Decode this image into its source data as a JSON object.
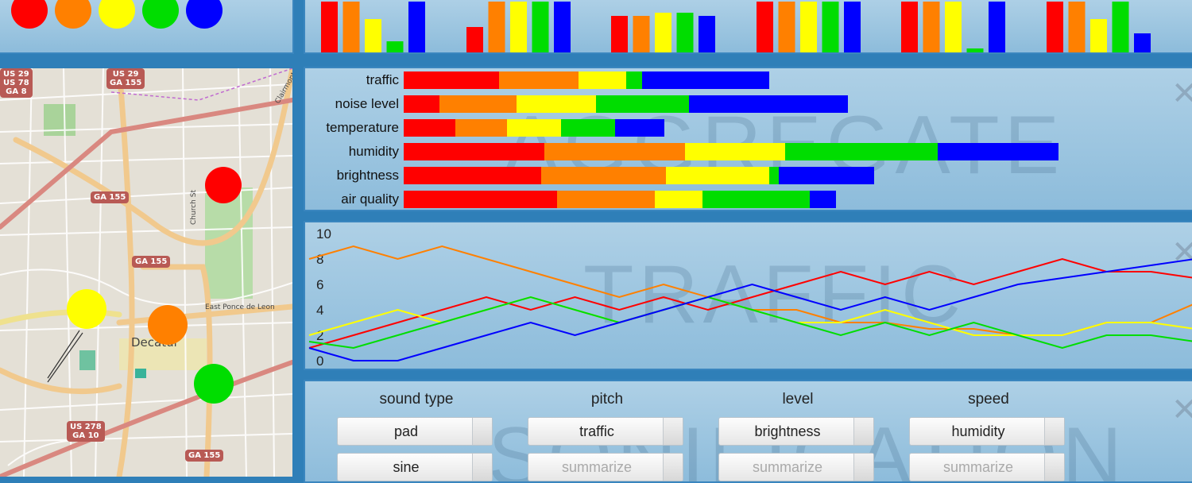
{
  "colors": [
    "#ff0000",
    "#ff8000",
    "#ffff00",
    "#00dd00",
    "#0000ff"
  ],
  "palette": {
    "dots": [
      "red",
      "orange",
      "yellow",
      "green",
      "blue"
    ]
  },
  "map": {
    "labels": {
      "decatur": "Decatur",
      "east_ponce": "East Ponce de Leon",
      "church": "Church St",
      "road_top": "Clairmont"
    },
    "shields": [
      {
        "lines": [
          "US 29",
          "US 78",
          "GA 8"
        ]
      },
      {
        "lines": [
          "US 29",
          "GA 155"
        ]
      },
      {
        "lines": [
          "GA 155"
        ]
      },
      {
        "lines": [
          "GA 155"
        ]
      },
      {
        "lines": [
          "US 278",
          "GA 10"
        ]
      },
      {
        "lines": [
          "GA 155"
        ]
      }
    ],
    "markers": [
      "red",
      "yellow",
      "orange",
      "green"
    ]
  },
  "top_bars": {
    "groups": [
      [
        64,
        64,
        42,
        14,
        64
      ],
      [
        32,
        64,
        64,
        64,
        64
      ],
      [
        46,
        46,
        50,
        50,
        46
      ],
      [
        64,
        64,
        64,
        64,
        64
      ],
      [
        64,
        64,
        64,
        5,
        64
      ],
      [
        64,
        64,
        42,
        64,
        24
      ]
    ]
  },
  "aggregate": {
    "watermark": "AGGREGATE",
    "labels": [
      "traffic",
      "noise level",
      "temperature",
      "humidity",
      "brightness",
      "air quality"
    ],
    "segments": [
      [
        120,
        100,
        60,
        20,
        160
      ],
      [
        45,
        97,
        100,
        117,
        200
      ],
      [
        65,
        65,
        68,
        68,
        62
      ],
      [
        177,
        177,
        126,
        192,
        152
      ],
      [
        173,
        157,
        130,
        12,
        120
      ],
      [
        193,
        123,
        60,
        135,
        33
      ]
    ]
  },
  "traffic_chart": {
    "watermark": "TRAFFIC",
    "y_ticks": [
      "10",
      "8",
      "6",
      "4",
      "2",
      "0"
    ]
  },
  "chart_data": {
    "type": "line",
    "title": "",
    "xlabel": "",
    "ylabel": "",
    "ylim": [
      0,
      10
    ],
    "x": [
      0,
      1,
      2,
      3,
      4,
      5,
      6,
      7,
      8,
      9,
      10,
      11,
      12,
      13,
      14,
      15,
      16,
      17,
      18,
      19,
      20
    ],
    "series": [
      {
        "color": "#ff0000",
        "values": [
          1,
          2,
          3,
          4,
          5,
          4,
          5,
          4,
          5,
          4,
          5,
          6,
          7,
          6,
          7,
          6,
          7,
          8,
          7,
          7,
          6.5
        ]
      },
      {
        "color": "#ff8000",
        "values": [
          8,
          9,
          8,
          9,
          8,
          7,
          6,
          5,
          6,
          5,
          4,
          4,
          3,
          3,
          2.5,
          2.5,
          2,
          2,
          3,
          3,
          4.5
        ]
      },
      {
        "color": "#ffff00",
        "values": [
          2,
          3,
          4,
          3,
          4,
          5,
          4,
          3,
          4,
          5,
          4,
          3,
          3,
          4,
          3,
          2,
          2,
          2,
          3,
          3,
          2.5
        ]
      },
      {
        "color": "#00dd00",
        "values": [
          1.5,
          1,
          2,
          3,
          4,
          5,
          4,
          3,
          4,
          5,
          4,
          3,
          2,
          3,
          2,
          3,
          2,
          1,
          2,
          2,
          1.5
        ]
      },
      {
        "color": "#0000ff",
        "values": [
          1,
          0,
          0,
          1,
          2,
          3,
          2,
          3,
          4,
          5,
          6,
          5,
          4,
          5,
          4,
          5,
          6,
          6.5,
          7,
          7.5,
          8
        ]
      }
    ]
  },
  "controls": {
    "watermark": "SONIFICATION",
    "columns": [
      {
        "header": "sound type",
        "value1": "pad",
        "value2": "sine"
      },
      {
        "header": "pitch",
        "value1": "traffic",
        "value2": "summarize"
      },
      {
        "header": "level",
        "value1": "brightness",
        "value2": "summarize"
      },
      {
        "header": "speed",
        "value1": "humidity",
        "value2": "summarize"
      }
    ]
  },
  "close_glyph": "✕"
}
